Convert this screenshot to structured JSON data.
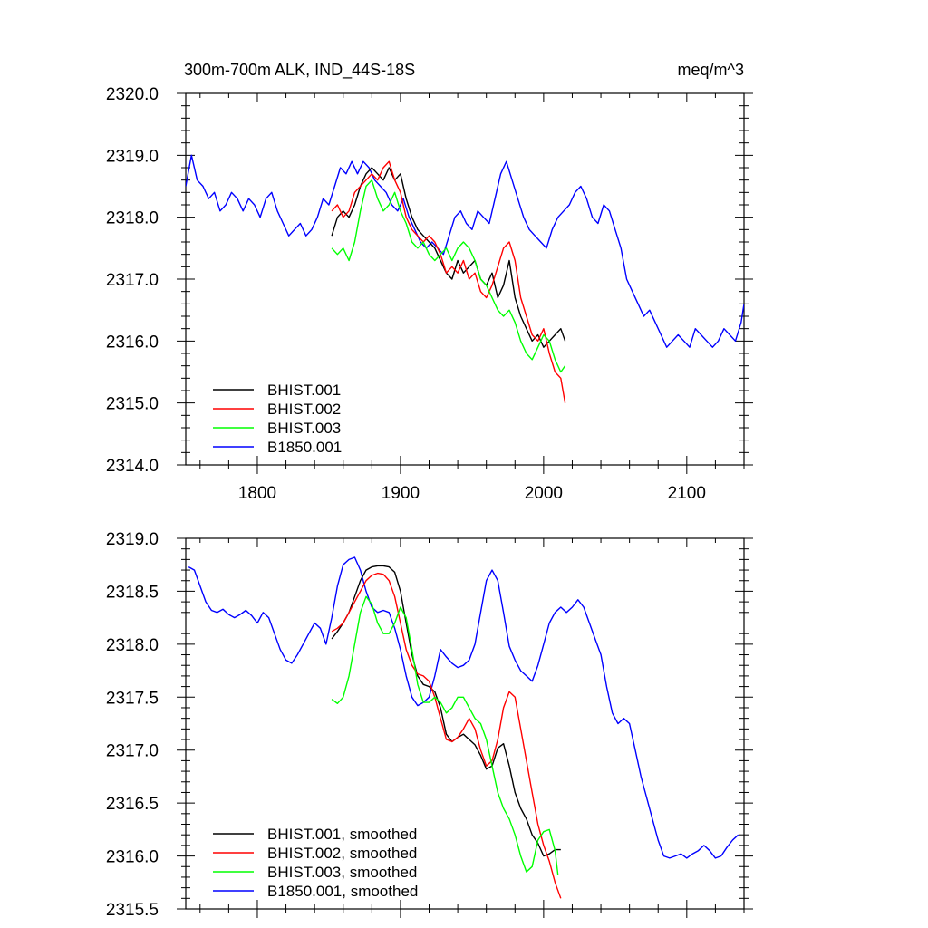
{
  "chart_data": [
    {
      "type": "line",
      "title": "300m-700m ALK, IND_44S-18S",
      "units": "meq/m^3",
      "xlabel": "",
      "ylabel": "",
      "xlim": [
        1750,
        2140
      ],
      "ylim": [
        2314.0,
        2320.0
      ],
      "xticks": [
        1800,
        1900,
        2000,
        2100
      ],
      "yticks": [
        2314.0,
        2315.0,
        2316.0,
        2317.0,
        2318.0,
        2319.0,
        2320.0
      ],
      "xtick_labels": [
        "1800",
        "1900",
        "2000",
        "2100"
      ],
      "ytick_labels": [
        "2314.0",
        "2315.0",
        "2316.0",
        "2317.0",
        "2318.0",
        "2319.0",
        "2320.0"
      ],
      "grid": false,
      "legend_position": "bottom-left",
      "series": [
        {
          "name": "BHIST.001",
          "color": "#000000",
          "x": [
            1852,
            1856,
            1860,
            1864,
            1868,
            1872,
            1876,
            1880,
            1884,
            1888,
            1892,
            1896,
            1900,
            1904,
            1908,
            1912,
            1916,
            1920,
            1924,
            1928,
            1932,
            1936,
            1940,
            1944,
            1948,
            1952,
            1956,
            1960,
            1964,
            1968,
            1972,
            1976,
            1980,
            1984,
            1988,
            1992,
            1996,
            2000,
            2004,
            2008,
            2012,
            2015
          ],
          "y": [
            2317.7,
            2318.0,
            2318.1,
            2318.0,
            2318.2,
            2318.5,
            2318.7,
            2318.8,
            2318.7,
            2318.6,
            2318.8,
            2318.6,
            2318.7,
            2318.3,
            2318.0,
            2317.8,
            2317.7,
            2317.6,
            2317.5,
            2317.3,
            2317.1,
            2317.0,
            2317.3,
            2317.1,
            2317.2,
            2317.3,
            2317.0,
            2316.9,
            2317.1,
            2316.7,
            2316.9,
            2317.3,
            2316.7,
            2316.4,
            2316.2,
            2316.0,
            2316.1,
            2315.9,
            2316.0,
            2316.1,
            2316.2,
            2316.0
          ]
        },
        {
          "name": "BHIST.002",
          "color": "#ff0000",
          "x": [
            1852,
            1856,
            1860,
            1864,
            1868,
            1872,
            1876,
            1880,
            1884,
            1888,
            1892,
            1896,
            1900,
            1904,
            1908,
            1912,
            1916,
            1920,
            1924,
            1928,
            1932,
            1936,
            1940,
            1944,
            1948,
            1952,
            1956,
            1960,
            1964,
            1968,
            1972,
            1976,
            1980,
            1984,
            1988,
            1992,
            1996,
            2000,
            2004,
            2008,
            2012,
            2015
          ],
          "y": [
            2318.1,
            2318.2,
            2318.0,
            2318.1,
            2318.4,
            2318.5,
            2318.6,
            2318.7,
            2318.6,
            2318.8,
            2318.9,
            2318.6,
            2318.4,
            2318.0,
            2317.8,
            2317.7,
            2317.6,
            2317.7,
            2317.6,
            2317.4,
            2317.1,
            2317.2,
            2317.1,
            2317.3,
            2317.0,
            2317.1,
            2316.8,
            2316.7,
            2316.9,
            2317.2,
            2317.5,
            2317.6,
            2317.3,
            2316.7,
            2316.4,
            2316.1,
            2316.0,
            2316.2,
            2315.8,
            2315.5,
            2315.4,
            2315.0
          ]
        },
        {
          "name": "BHIST.003",
          "color": "#00ff00",
          "x": [
            1852,
            1856,
            1860,
            1864,
            1868,
            1872,
            1876,
            1880,
            1884,
            1888,
            1892,
            1896,
            1900,
            1904,
            1908,
            1912,
            1916,
            1920,
            1924,
            1928,
            1932,
            1936,
            1940,
            1944,
            1948,
            1952,
            1956,
            1960,
            1964,
            1968,
            1972,
            1976,
            1980,
            1984,
            1988,
            1992,
            1996,
            2000,
            2004,
            2008,
            2012,
            2015
          ],
          "y": [
            2317.5,
            2317.4,
            2317.5,
            2317.3,
            2317.6,
            2318.1,
            2318.5,
            2318.6,
            2318.3,
            2318.1,
            2318.2,
            2318.4,
            2318.1,
            2317.9,
            2317.6,
            2317.5,
            2317.6,
            2317.4,
            2317.3,
            2317.4,
            2317.5,
            2317.3,
            2317.5,
            2317.6,
            2317.5,
            2317.3,
            2317.0,
            2316.9,
            2316.7,
            2316.5,
            2316.4,
            2316.5,
            2316.3,
            2316.0,
            2315.8,
            2315.7,
            2315.9,
            2316.1,
            2316.0,
            2315.7,
            2315.5,
            2315.6
          ]
        },
        {
          "name": "B1850.001",
          "color": "#0000ff",
          "x": [
            1750,
            1754,
            1758,
            1762,
            1766,
            1770,
            1774,
            1778,
            1782,
            1786,
            1790,
            1794,
            1798,
            1802,
            1806,
            1810,
            1814,
            1818,
            1822,
            1826,
            1830,
            1834,
            1838,
            1842,
            1846,
            1850,
            1854,
            1858,
            1862,
            1866,
            1870,
            1874,
            1878,
            1882,
            1886,
            1890,
            1894,
            1898,
            1902,
            1906,
            1910,
            1914,
            1918,
            1922,
            1926,
            1930,
            1934,
            1938,
            1942,
            1946,
            1950,
            1954,
            1958,
            1962,
            1966,
            1970,
            1974,
            1978,
            1982,
            1986,
            1990,
            1994,
            1998,
            2002,
            2006,
            2010,
            2014,
            2018,
            2022,
            2026,
            2030,
            2034,
            2038,
            2042,
            2046,
            2050,
            2054,
            2058,
            2062,
            2066,
            2070,
            2074,
            2078,
            2082,
            2086,
            2090,
            2094,
            2098,
            2102,
            2106,
            2110,
            2114,
            2118,
            2122,
            2126,
            2130,
            2134,
            2138,
            2140
          ],
          "y": [
            2318.5,
            2319.0,
            2318.6,
            2318.5,
            2318.3,
            2318.4,
            2318.1,
            2318.2,
            2318.4,
            2318.3,
            2318.1,
            2318.3,
            2318.2,
            2318.0,
            2318.3,
            2318.4,
            2318.1,
            2317.9,
            2317.7,
            2317.8,
            2317.9,
            2317.7,
            2317.8,
            2318.0,
            2318.3,
            2318.2,
            2318.5,
            2318.8,
            2318.7,
            2318.9,
            2318.7,
            2318.9,
            2318.8,
            2318.6,
            2318.5,
            2318.4,
            2318.2,
            2318.1,
            2318.3,
            2318.0,
            2317.8,
            2317.6,
            2317.5,
            2317.6,
            2317.5,
            2317.4,
            2317.7,
            2318.0,
            2318.1,
            2317.9,
            2317.8,
            2318.1,
            2318.0,
            2317.9,
            2318.3,
            2318.7,
            2318.9,
            2318.6,
            2318.3,
            2318.0,
            2317.8,
            2317.7,
            2317.6,
            2317.5,
            2317.8,
            2318.0,
            2318.1,
            2318.2,
            2318.4,
            2318.5,
            2318.3,
            2318.0,
            2317.9,
            2318.2,
            2318.1,
            2317.8,
            2317.5,
            2317.0,
            2316.8,
            2316.6,
            2316.4,
            2316.5,
            2316.3,
            2316.1,
            2315.9,
            2316.0,
            2316.1,
            2316.0,
            2315.9,
            2316.2,
            2316.1,
            2316.0,
            2315.9,
            2316.0,
            2316.2,
            2316.1,
            2316.0,
            2316.3,
            2316.6
          ]
        }
      ]
    },
    {
      "type": "line",
      "title": "",
      "xlabel": "",
      "ylabel": "",
      "xlim": [
        1750,
        2140
      ],
      "ylim": [
        2315.5,
        2319.0
      ],
      "xticks": [
        1800,
        1900,
        2000,
        2100
      ],
      "yticks": [
        2315.5,
        2316.0,
        2316.5,
        2317.0,
        2317.5,
        2318.0,
        2318.5,
        2319.0
      ],
      "ytick_labels": [
        "2315.5",
        "2316.0",
        "2316.5",
        "2317.0",
        "2317.5",
        "2318.0",
        "2318.5",
        "2319.0"
      ],
      "grid": false,
      "legend_position": "bottom-left",
      "series": [
        {
          "name": "BHIST.001, smoothed",
          "color": "#000000",
          "x": [
            1852,
            1856,
            1860,
            1864,
            1868,
            1872,
            1876,
            1880,
            1884,
            1888,
            1892,
            1896,
            1900,
            1904,
            1908,
            1912,
            1916,
            1920,
            1924,
            1928,
            1932,
            1936,
            1940,
            1944,
            1948,
            1952,
            1956,
            1960,
            1964,
            1968,
            1972,
            1976,
            1980,
            1984,
            1988,
            1992,
            1996,
            2000,
            2004,
            2008,
            2012
          ],
          "y": [
            2318.05,
            2318.12,
            2318.2,
            2318.3,
            2318.45,
            2318.6,
            2318.7,
            2318.73,
            2318.74,
            2318.74,
            2318.73,
            2318.68,
            2318.5,
            2318.2,
            2317.9,
            2317.7,
            2317.62,
            2317.6,
            2317.55,
            2317.4,
            2317.15,
            2317.08,
            2317.12,
            2317.15,
            2317.1,
            2317.05,
            2316.95,
            2316.82,
            2316.85,
            2317.02,
            2317.06,
            2316.85,
            2316.6,
            2316.45,
            2316.35,
            2316.2,
            2316.12,
            2316.0,
            2316.02,
            2316.06,
            2316.06
          ]
        },
        {
          "name": "BHIST.002, smoothed",
          "color": "#ff0000",
          "x": [
            1852,
            1856,
            1860,
            1864,
            1868,
            1872,
            1876,
            1880,
            1884,
            1888,
            1892,
            1896,
            1900,
            1904,
            1908,
            1912,
            1916,
            1920,
            1924,
            1928,
            1932,
            1936,
            1940,
            1944,
            1948,
            1952,
            1956,
            1960,
            1964,
            1968,
            1972,
            1976,
            1980,
            1984,
            1988,
            1992,
            1996,
            2000,
            2004,
            2008,
            2012
          ],
          "y": [
            2318.12,
            2318.15,
            2318.2,
            2318.3,
            2318.4,
            2318.5,
            2318.6,
            2318.65,
            2318.67,
            2318.66,
            2318.6,
            2318.45,
            2318.2,
            2317.95,
            2317.8,
            2317.72,
            2317.7,
            2317.65,
            2317.5,
            2317.3,
            2317.1,
            2317.08,
            2317.12,
            2317.2,
            2317.3,
            2317.2,
            2317.0,
            2316.85,
            2316.9,
            2317.1,
            2317.4,
            2317.55,
            2317.5,
            2317.2,
            2316.9,
            2316.6,
            2316.3,
            2316.1,
            2315.95,
            2315.75,
            2315.6
          ]
        },
        {
          "name": "BHIST.003, smoothed",
          "color": "#00ff00",
          "x": [
            1852,
            1856,
            1860,
            1864,
            1868,
            1872,
            1876,
            1880,
            1884,
            1888,
            1892,
            1896,
            1900,
            1904,
            1908,
            1912,
            1916,
            1920,
            1924,
            1928,
            1932,
            1936,
            1940,
            1944,
            1948,
            1952,
            1956,
            1960,
            1964,
            1968,
            1972,
            1976,
            1980,
            1984,
            1988,
            1992,
            1996,
            2000,
            2004,
            2008,
            2010
          ],
          "y": [
            2317.48,
            2317.44,
            2317.5,
            2317.7,
            2318.0,
            2318.3,
            2318.45,
            2318.38,
            2318.2,
            2318.1,
            2318.1,
            2318.2,
            2318.35,
            2318.25,
            2317.95,
            2317.62,
            2317.45,
            2317.45,
            2317.5,
            2317.45,
            2317.35,
            2317.4,
            2317.5,
            2317.5,
            2317.4,
            2317.3,
            2317.25,
            2317.1,
            2316.85,
            2316.6,
            2316.45,
            2316.35,
            2316.2,
            2316.0,
            2315.85,
            2315.9,
            2316.15,
            2316.23,
            2316.25,
            2316.05,
            2315.82
          ]
        },
        {
          "name": "B1850.001, smoothed",
          "color": "#0000ff",
          "x": [
            1752,
            1756,
            1760,
            1764,
            1768,
            1772,
            1776,
            1780,
            1784,
            1788,
            1792,
            1796,
            1800,
            1804,
            1808,
            1812,
            1816,
            1820,
            1824,
            1828,
            1832,
            1836,
            1840,
            1844,
            1848,
            1852,
            1856,
            1860,
            1864,
            1868,
            1872,
            1876,
            1880,
            1884,
            1888,
            1892,
            1896,
            1900,
            1904,
            1908,
            1912,
            1916,
            1920,
            1924,
            1928,
            1932,
            1936,
            1940,
            1944,
            1948,
            1952,
            1956,
            1960,
            1964,
            1968,
            1972,
            1976,
            1980,
            1984,
            1988,
            1992,
            1996,
            2000,
            2004,
            2008,
            2012,
            2016,
            2020,
            2024,
            2028,
            2032,
            2036,
            2040,
            2044,
            2048,
            2052,
            2056,
            2060,
            2064,
            2068,
            2072,
            2076,
            2080,
            2084,
            2088,
            2092,
            2096,
            2100,
            2104,
            2108,
            2112,
            2116,
            2120,
            2124,
            2128,
            2132,
            2136
          ],
          "y": [
            2318.73,
            2318.7,
            2318.55,
            2318.4,
            2318.32,
            2318.3,
            2318.33,
            2318.28,
            2318.25,
            2318.28,
            2318.32,
            2318.27,
            2318.2,
            2318.3,
            2318.25,
            2318.1,
            2317.95,
            2317.85,
            2317.82,
            2317.9,
            2318.0,
            2318.1,
            2318.2,
            2318.15,
            2318.0,
            2318.25,
            2318.55,
            2318.75,
            2318.8,
            2318.82,
            2318.7,
            2318.5,
            2318.35,
            2318.3,
            2318.32,
            2318.3,
            2318.15,
            2317.95,
            2317.7,
            2317.5,
            2317.42,
            2317.45,
            2317.5,
            2317.7,
            2317.95,
            2317.88,
            2317.82,
            2317.78,
            2317.8,
            2317.85,
            2318.0,
            2318.3,
            2318.6,
            2318.7,
            2318.6,
            2318.3,
            2317.98,
            2317.85,
            2317.75,
            2317.7,
            2317.65,
            2317.8,
            2318.0,
            2318.2,
            2318.3,
            2318.35,
            2318.3,
            2318.35,
            2318.42,
            2318.35,
            2318.2,
            2318.05,
            2317.9,
            2317.6,
            2317.35,
            2317.25,
            2317.3,
            2317.25,
            2317.0,
            2316.75,
            2316.55,
            2316.35,
            2316.15,
            2316.0,
            2315.98,
            2316.0,
            2316.02,
            2315.98,
            2316.02,
            2316.05,
            2316.1,
            2316.05,
            2315.98,
            2316.0,
            2316.08,
            2316.15,
            2316.2
          ]
        }
      ]
    }
  ]
}
